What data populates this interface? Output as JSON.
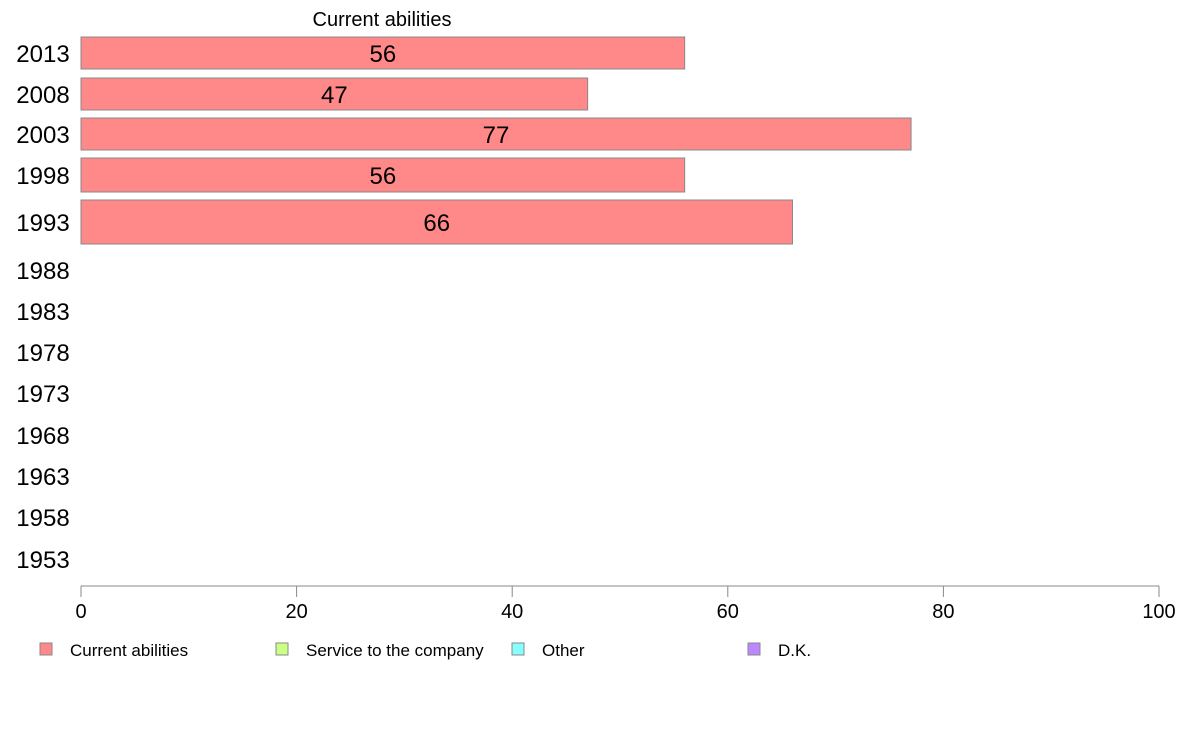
{
  "chart_data": {
    "type": "bar",
    "orientation": "horizontal",
    "stacked": true,
    "categories": [
      "2013",
      "2008",
      "2003",
      "1998",
      "1993",
      "1988",
      "1983",
      "1978",
      "1973",
      "1968",
      "1963",
      "1958",
      "1953"
    ],
    "series": [
      {
        "name": "Current abilities",
        "color": "#ff8888",
        "values": [
          56,
          47,
          77,
          56,
          66,
          null,
          null,
          null,
          null,
          null,
          null,
          null,
          null
        ]
      },
      {
        "name": "Service to the company",
        "color": "#ccff88",
        "values": [
          null,
          null,
          null,
          null,
          null,
          null,
          null,
          null,
          null,
          null,
          null,
          null,
          null
        ]
      },
      {
        "name": "Other",
        "color": "#88ffff",
        "values": [
          null,
          null,
          null,
          null,
          null,
          null,
          null,
          null,
          null,
          null,
          null,
          null,
          null
        ]
      },
      {
        "name": "D.K.",
        "color": "#bb88ff",
        "values": [
          null,
          null,
          null,
          null,
          null,
          null,
          null,
          null,
          null,
          null,
          null,
          null,
          null
        ]
      }
    ],
    "series_title": "Current abilities",
    "xlim": [
      0,
      100
    ],
    "xticks": [
      "0",
      "20",
      "40",
      "60",
      "80",
      "100"
    ],
    "legend_position": "bottom",
    "grid": false
  }
}
